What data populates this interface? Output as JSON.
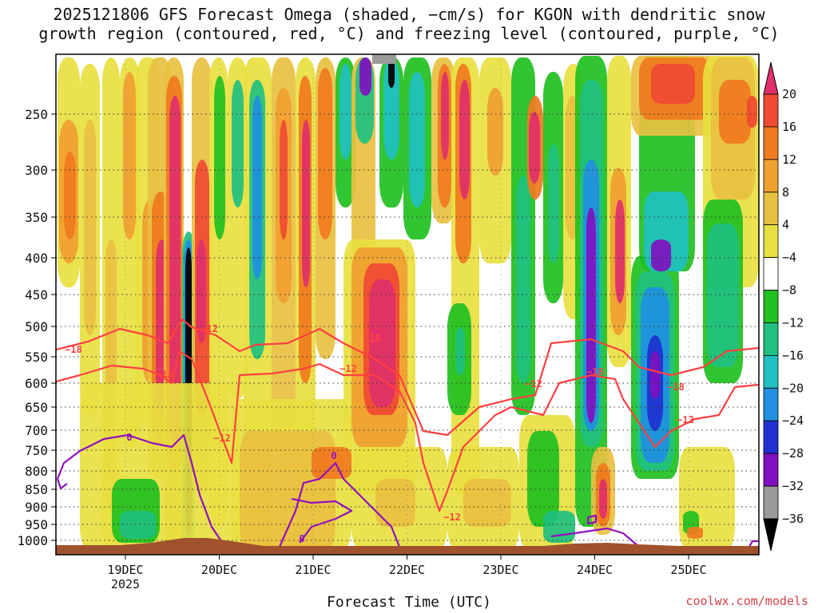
{
  "chart_data": {
    "type": "heatmap",
    "title_line1": "2025121806 GFS Forecast Omega (shaded, −cm/s) for KGON with dendritic snow",
    "title_line2": "growth region (contoured, red, °C) and freezing level (contoured, purple, °C)",
    "xlabel": "Forecast Time (UTC)",
    "x_ticks": [
      "19DEC",
      "20DEC",
      "21DEC",
      "22DEC",
      "23DEC",
      "24DEC",
      "25DEC"
    ],
    "x_year": "2025",
    "y_ticks": [
      "250",
      "300",
      "350",
      "400",
      "450",
      "500",
      "550",
      "600",
      "650",
      "700",
      "750",
      "800",
      "850",
      "900",
      "950",
      "1000"
    ],
    "y_axis": "pressure (hPa), reversed, log-like",
    "y_range": [
      1000,
      200
    ],
    "colorbar_ticks": [
      "20",
      "16",
      "12",
      "8",
      "4",
      "−4",
      "−8",
      "−12",
      "−16",
      "−20",
      "−24",
      "−28",
      "−32",
      "−36"
    ],
    "colorbar_colors": [
      "#e0306a",
      "#f04a32",
      "#f07a1e",
      "#f0a030",
      "#e8c040",
      "#e8e040",
      "#ffffff",
      "#20c020",
      "#20c080",
      "#20c0c0",
      "#2090e0",
      "#2030d0",
      "#8010c0",
      "#9a9a9a",
      "#000000"
    ],
    "contour_labels_dendritic": [
      "−18",
      "−12",
      "−18",
      "−12",
      "−12",
      "−18",
      "−12",
      "−18",
      "−12"
    ],
    "contour_labels_freezing": [
      "0",
      "0",
      "0"
    ],
    "contour_colors": {
      "dendritic": "#ff4040",
      "freezing": "#9010c0"
    },
    "terrain_color": "#a0522d"
  },
  "credit": "coolwx.com/models"
}
